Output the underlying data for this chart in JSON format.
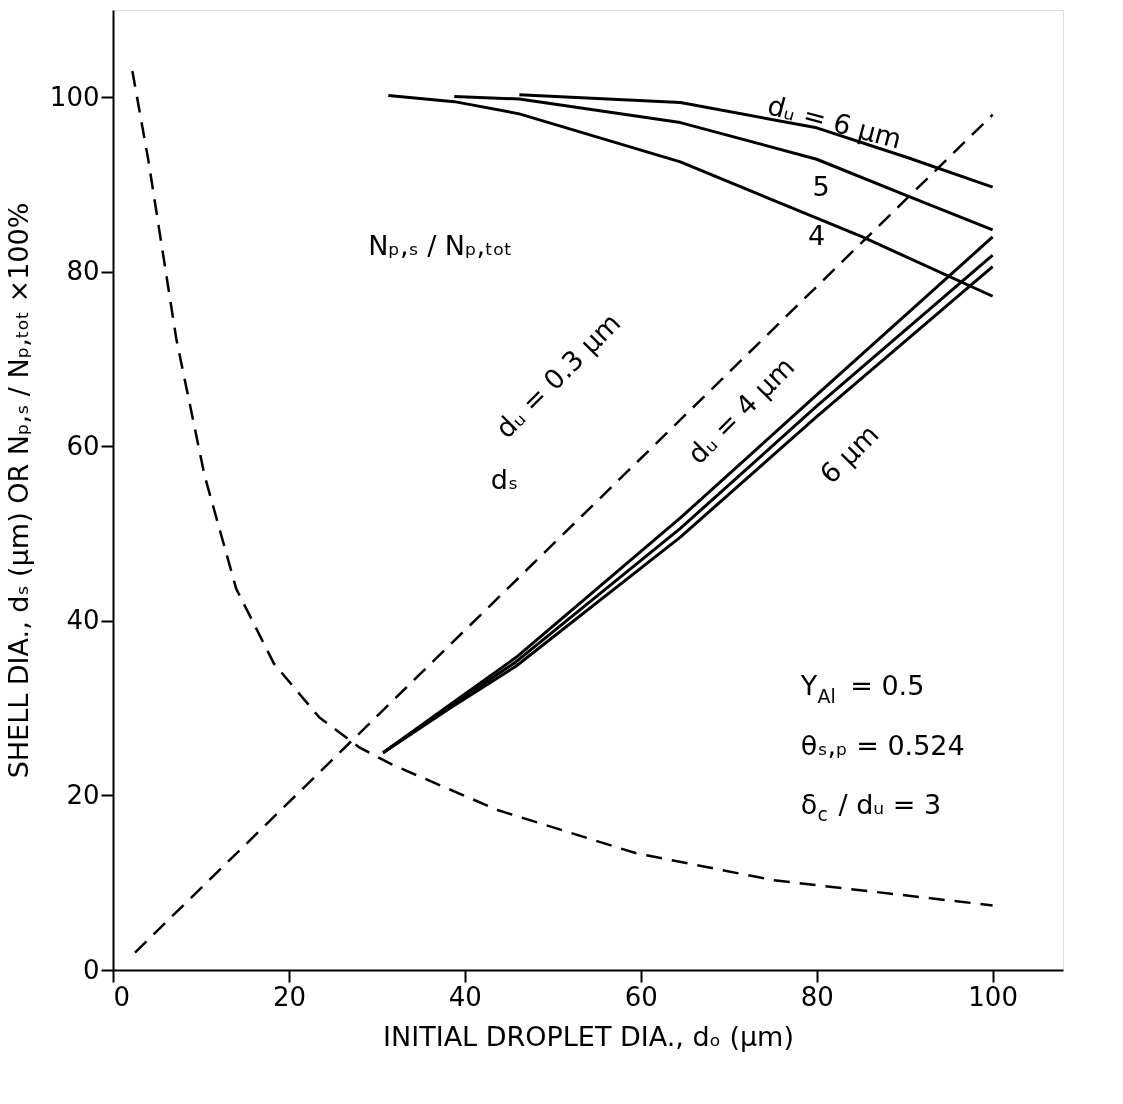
{
  "chart_data": {
    "type": "line",
    "xlabel": "INITIAL DROPLET DIA., dₒ (μm)",
    "ylabel": "SHELL DIA., dₛ (μm) OR Nₚ,ₛ / Nₚ,ₜₒₜ ×100%",
    "xlim": [
      0,
      108
    ],
    "ylim": [
      0,
      110
    ],
    "xticks": [
      0,
      20,
      40,
      60,
      80,
      100
    ],
    "yticks": [
      0,
      20,
      40,
      60,
      80,
      100
    ],
    "grid": false,
    "marker": "none",
    "series": [
      {
        "color": "#000000",
        "line_style": "dashed",
        "x": [
          2.2,
          4.0,
          7.2,
          10.4,
          14.0,
          18.3,
          23.4,
          28.0,
          31.8,
          43.8,
          59.4,
          75.0,
          100
        ],
        "values": [
          103,
          92.9,
          72.3,
          56.7,
          43.7,
          35.1,
          29.0,
          25.5,
          23.5,
          18.3,
          13.4,
          10.3,
          7.4
        ]
      },
      {
        "color": "#000000",
        "line_style": "dashed",
        "x": [
          2.5,
          100
        ],
        "values": [
          2,
          98
        ]
      },
      {
        "color": "#000000",
        "line_style": "solid",
        "x": [
          30.7,
          38.3,
          45.8,
          64.5,
          80,
          100
        ],
        "values": [
          24.9,
          30.4,
          35.8,
          51.8,
          65.9,
          84.0
        ]
      },
      {
        "color": "#000000",
        "line_style": "solid",
        "x": [
          30.7,
          38.3,
          45.8,
          64.5,
          80,
          100
        ],
        "values": [
          24.9,
          30.2,
          35.3,
          50.6,
          64.6,
          81.9
        ]
      },
      {
        "color": "#000000",
        "line_style": "solid",
        "x": [
          30.7,
          38.3,
          45.8,
          64.5,
          80,
          100
        ],
        "values": [
          24.9,
          30.0,
          34.8,
          49.6,
          63.4,
          80.6
        ]
      },
      {
        "color": "#000000",
        "line_style": "solid",
        "x": [
          31.3,
          38.8,
          46.2,
          64.5,
          85.2,
          100
        ],
        "values": [
          100.2,
          99.5,
          98.1,
          92.6,
          84.0,
          77.2
        ]
      },
      {
        "color": "#000000",
        "line_style": "solid",
        "x": [
          38.8,
          46.2,
          64.5,
          80,
          90.3,
          100
        ],
        "values": [
          100.1,
          99.8,
          97.1,
          92.9,
          88.7,
          84.8
        ]
      },
      {
        "color": "#000000",
        "line_style": "solid",
        "x": [
          46.2,
          64.5,
          80,
          90.3,
          100
        ],
        "values": [
          100.3,
          99.4,
          96.5,
          93.1,
          89.7
        ]
      }
    ],
    "annotations": [
      "Nₚ,ₛ / Nₚ,ₜₒₜ",
      "dᵤ = 6 μm",
      "5",
      "4",
      "dᵤ = 0.3 μm",
      "dᵤ = 4 μm",
      "6 μm",
      "dₛ",
      "Y$_{Al}$ = 0.5",
      "θₛ,ₚ = 0.524",
      "δ$_{c}$ / dᵤ = 3"
    ]
  }
}
